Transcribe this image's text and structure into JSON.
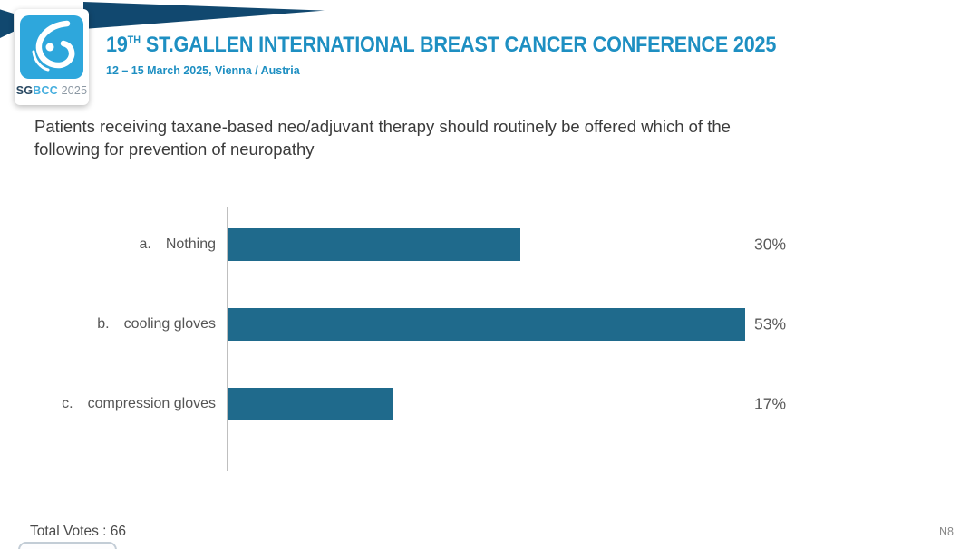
{
  "header": {
    "logo": {
      "badge_sg": "SG",
      "badge_bcc": "BCC",
      "badge_year": " 2025",
      "glyph": "sgbcc-drop-logo"
    },
    "title_number": "19",
    "title_ordinal": "TH",
    "title_rest": " ST.GALLEN INTERNATIONAL BREAST CANCER CONFERENCE 2025",
    "subtitle": "12 – 15 March 2025, Vienna / Austria"
  },
  "question": {
    "line1": "Patients receiving taxane-based neo/adjuvant therapy should routinely be offered which of the",
    "line2": "following for prevention of neuropathy"
  },
  "chart_data": {
    "type": "bar",
    "orientation": "horizontal",
    "categories": [
      "a. Nothing",
      "b. cooling gloves",
      "c. compression gloves"
    ],
    "option_letters": [
      "a.",
      "b.",
      "c."
    ],
    "option_labels": [
      "Nothing",
      "cooling gloves",
      "compression gloves"
    ],
    "values": [
      30,
      53,
      17
    ],
    "value_labels": [
      "30%",
      "53%",
      "17%"
    ],
    "xlim": [
      0,
      100
    ],
    "bar_color": "#1F6A8C",
    "axis": "single vertical baseline at left, no gridlines, no x-axis ticks",
    "value_label_position": "fixed column right of plot"
  },
  "footer": {
    "total_votes": "Total Votes : 66",
    "slide_code": "N8"
  },
  "colors": {
    "banner_navy": "#11486F",
    "logo_blue": "#2EA7DC",
    "title_blue": "#1E8FC2",
    "bar_teal": "#1F6A8C",
    "text_dark": "#3B3B3B",
    "text_gray": "#595959",
    "axis_gray": "#BFBFBF"
  }
}
